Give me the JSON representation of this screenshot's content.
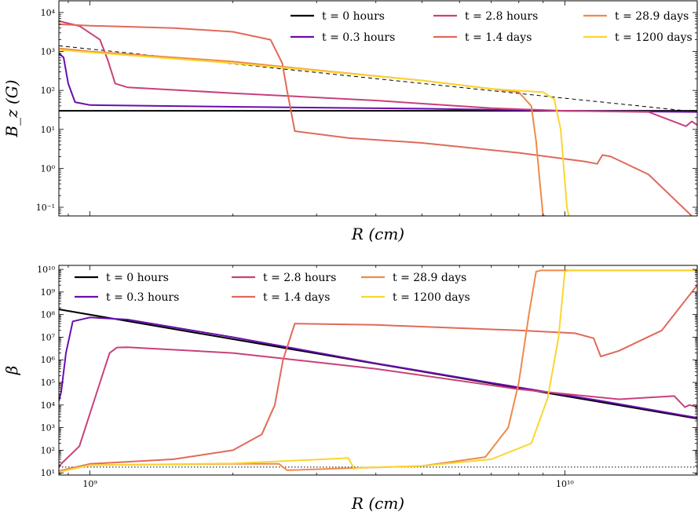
{
  "chart_data": [
    {
      "type": "line",
      "panel": "top",
      "xscale": "log",
      "yscale": "log",
      "xlim": [
        860000000,
        19000000000
      ],
      "ylim": [
        0.06,
        20000
      ],
      "xlabel": "R (cm)",
      "ylabel": "B_z (G)",
      "ytick_labels": [
        "10⁻¹",
        "10⁰",
        "10¹",
        "10²",
        "10³",
        "10⁴"
      ],
      "ytick_values": [
        0.1,
        1,
        10,
        100,
        1000,
        10000
      ],
      "legend_loc": "top-right",
      "legend": [
        "t = 0 hours",
        "t = 0.3 hours",
        "t = 2.8 hours",
        "t = 1.4 days",
        "t = 28.9 days",
        "t = 1200 days"
      ],
      "reference_line": {
        "style": "dashed",
        "color": "#000000",
        "x": [
          860000000,
          19000000000
        ],
        "y": [
          1400,
          28
        ]
      },
      "series": [
        {
          "legend": "t = 0 hours",
          "color": "#000000",
          "x": [
            860000000,
            19000000000
          ],
          "y": [
            30,
            30
          ]
        },
        {
          "legend": "t = 0.3 hours",
          "color": "#6a0dad",
          "x": [
            860000000,
            880000000,
            900000000,
            930000000,
            1000000000,
            2000000000,
            5000000000,
            10000000000,
            19000000000
          ],
          "y": [
            900,
            700,
            150,
            50,
            42,
            38,
            34,
            30,
            28
          ]
        },
        {
          "legend": "t = 2.8 hours",
          "color": "#c8417a",
          "x": [
            860000000,
            950000000,
            1050000000,
            1090000000,
            1130000000,
            1200000000,
            2000000000,
            4000000000,
            7000000000,
            10000000000,
            15000000000,
            18000000000,
            18500000000,
            19000000000
          ],
          "y": [
            6000,
            4500,
            2000,
            600,
            150,
            120,
            85,
            55,
            35,
            30,
            28,
            12,
            16,
            13
          ]
        },
        {
          "legend": "t = 1.4 days",
          "color": "#e06a5a",
          "x": [
            860000000,
            1000000000,
            1500000000,
            2000000000,
            2400000000,
            2540000000,
            2600000000,
            2700000000,
            3500000000,
            5000000000,
            8000000000,
            11000000000,
            11700000000,
            12000000000,
            12500000000,
            15000000000,
            18500000000
          ],
          "y": [
            5000,
            4600,
            4000,
            3200,
            2000,
            500,
            100,
            9,
            6,
            4.5,
            2.5,
            1.5,
            1.3,
            2.2,
            2,
            0.7,
            0.06
          ]
        },
        {
          "legend": "t = 28.9 days",
          "color": "#ee8a4a",
          "x": [
            860000000,
            1000000000,
            2000000000,
            3000000000,
            5000000000,
            7000000000,
            8000000000,
            8500000000,
            8700000000,
            8850000000,
            9000000000,
            9100000000
          ],
          "y": [
            1200,
            1000,
            550,
            330,
            180,
            110,
            90,
            40,
            5,
            0.5,
            0.06,
            0.06
          ]
        },
        {
          "legend": "t = 1200 days",
          "color": "#fad630",
          "x": [
            860000000,
            1000000000,
            2000000000,
            3000000000,
            5000000000,
            7000000000,
            9000000000,
            9500000000,
            9800000000,
            9950000000,
            10100000000,
            10200000000
          ],
          "y": [
            1100,
            950,
            500,
            320,
            180,
            110,
            90,
            60,
            10,
            1,
            0.1,
            0.06
          ]
        }
      ]
    },
    {
      "type": "line",
      "panel": "bottom",
      "xscale": "log",
      "yscale": "log",
      "xlim": [
        860000000,
        19000000000
      ],
      "ylim": [
        8,
        15000000000
      ],
      "xlabel": "R (cm)",
      "ylabel": "β",
      "xtick_labels": [
        "10⁹",
        "10¹⁰"
      ],
      "xtick_values": [
        1000000000,
        10000000000
      ],
      "ytick_labels": [
        "10¹",
        "10²",
        "10³",
        "10⁴",
        "10⁵",
        "10⁶",
        "10⁷",
        "10⁸",
        "10⁹",
        "10¹⁰"
      ],
      "ytick_values": [
        10,
        100,
        1000,
        10000,
        100000,
        1000000,
        10000000,
        100000000,
        1000000000,
        10000000000
      ],
      "legend_loc": "top-left",
      "legend": [
        "t = 0 hours",
        "t = 0.3 hours",
        "t = 2.8 hours",
        "t = 1.4 days",
        "t = 28.9 days",
        "t = 1200 days"
      ],
      "reference_line": {
        "style": "dotted",
        "color": "#000000",
        "x": [
          860000000,
          19000000000
        ],
        "y": [
          18,
          18
        ]
      },
      "series": [
        {
          "legend": "t = 0 hours",
          "color": "#000000",
          "x": [
            860000000,
            19000000000
          ],
          "y": [
            170000000,
            2500
          ]
        },
        {
          "legend": "t = 0.3 hours",
          "color": "#6a0dad",
          "x": [
            860000000,
            870000000,
            890000000,
            920000000,
            1000000000,
            1200000000,
            2000000000,
            4000000000,
            8000000000,
            12000000000,
            19000000000
          ],
          "y": [
            15000,
            40000,
            2000000,
            50000000,
            75000000,
            60000000,
            10000000,
            700000,
            60000,
            15000,
            2700
          ]
        },
        {
          "legend": "t = 2.8 hours",
          "color": "#c8417a",
          "x": [
            860000000,
            950000000,
            1050000000,
            1100000000,
            1140000000,
            1200000000,
            2000000000,
            4000000000,
            8000000000,
            13000000000,
            17000000000,
            17900000000,
            18300000000,
            19000000000
          ],
          "y": [
            20,
            150,
            100000,
            2000000,
            3500000,
            3600000,
            2000000,
            400000,
            50000,
            18000,
            25000,
            8000,
            10000,
            8000
          ]
        },
        {
          "legend": "t = 1.4 days",
          "color": "#e06a5a",
          "x": [
            860000000,
            1000000000,
            1500000000,
            2000000000,
            2300000000,
            2450000000,
            2550000000,
            2700000000,
            4000000000,
            8000000000,
            10500000000,
            11500000000,
            11900000000,
            13000000000,
            16000000000,
            19000000000
          ],
          "y": [
            12,
            25,
            40,
            100,
            500,
            10000,
            1000000,
            40000000,
            35000000,
            20000000,
            15000000,
            9000000,
            1400000,
            2500000,
            20000000,
            2000000000
          ]
        },
        {
          "legend": "t = 28.9 days",
          "color": "#ee8a4a",
          "x": [
            860000000,
            1000000000,
            2000000000,
            2500000000,
            2600000000,
            3500000000,
            5000000000,
            6800000000,
            7600000000,
            8000000000,
            8400000000,
            8700000000,
            8900000000,
            19000000000
          ],
          "y": [
            11,
            22,
            25,
            25,
            13,
            16,
            20,
            50,
            1000,
            100000,
            100000000,
            8000000000,
            9000000000,
            9000000000
          ]
        },
        {
          "legend": "t = 1200 days",
          "color": "#fad630",
          "x": [
            860000000,
            1000000000,
            2000000000,
            3500000000,
            3600000000,
            3700000000,
            5000000000,
            7000000000,
            8500000000,
            9200000000,
            9700000000,
            10000000000,
            10200000000,
            19000000000
          ],
          "y": [
            11,
            22,
            26,
            45,
            15,
            17,
            20,
            40,
            200,
            20000,
            10000000,
            8000000000,
            9000000000,
            9000000000
          ]
        }
      ]
    }
  ]
}
